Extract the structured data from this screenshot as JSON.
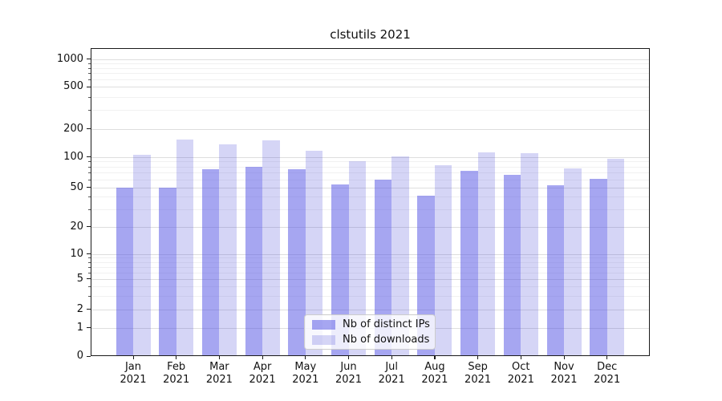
{
  "chart_data": {
    "type": "bar",
    "title": "clstutils 2021",
    "categories": [
      "Jan 2021",
      "Feb 2021",
      "Mar 2021",
      "Apr 2021",
      "May 2021",
      "Jun 2021",
      "Jul 2021",
      "Aug 2021",
      "Sep 2021",
      "Oct 2021",
      "Nov 2021",
      "Dec 2021"
    ],
    "month_labels": [
      "Jan",
      "Feb",
      "Mar",
      "Apr",
      "May",
      "Jun",
      "Jul",
      "Aug",
      "Sep",
      "Oct",
      "Nov",
      "Dec"
    ],
    "year_label": "2021",
    "series": [
      {
        "name": "Nb of distinct IPs",
        "color_hex": "#a2a2ef",
        "color_rgba": "rgba(84,84,228,0.52)",
        "values": [
          50,
          50,
          75,
          80,
          75,
          53,
          60,
          41,
          73,
          66,
          52,
          61
        ]
      },
      {
        "name": "Nb of downloads",
        "color_hex": "#d5d5f6",
        "color_rgba": "rgba(62,62,214,0.22)",
        "values": [
          106,
          153,
          136,
          149,
          116,
          91,
          102,
          83,
          112,
          110,
          77,
          96
        ]
      }
    ],
    "y_axis": {
      "scale": "symlog",
      "ticks": [
        0,
        1,
        2,
        5,
        10,
        20,
        50,
        100,
        200,
        500,
        1000
      ],
      "minor_ticks": [
        3,
        4,
        6,
        7,
        8,
        9,
        30,
        40,
        60,
        70,
        80,
        90,
        300,
        400,
        600,
        700,
        800,
        900
      ],
      "range": [
        0,
        1000
      ]
    },
    "xlabel": "",
    "ylabel": "",
    "grid": true,
    "legend_position": "lower-center"
  }
}
